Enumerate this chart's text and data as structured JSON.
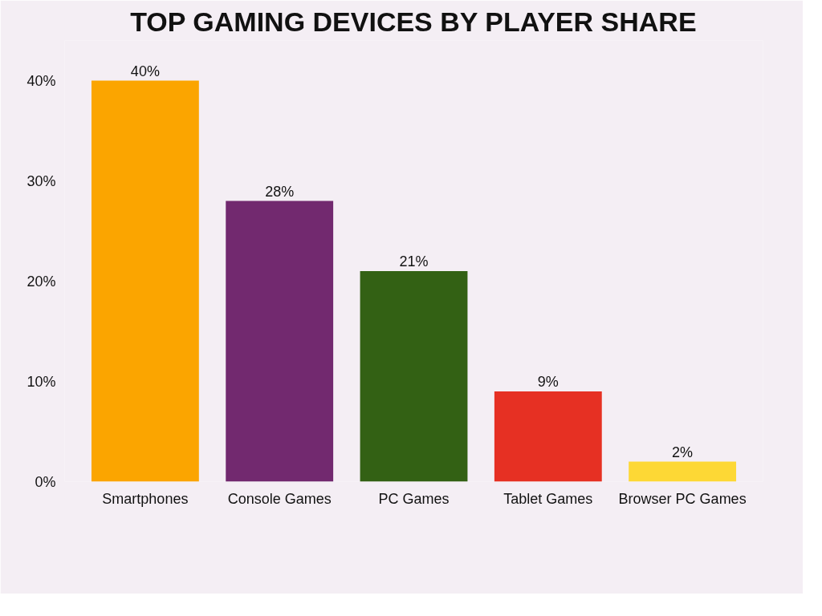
{
  "chart_data": {
    "type": "bar",
    "title": "TOP GAMING DEVICES BY PLAYER SHARE",
    "categories": [
      "Smartphones",
      "Console Games",
      "PC Games",
      "Tablet Games",
      "Browser PC Games"
    ],
    "values": [
      40,
      28,
      21,
      9,
      2
    ],
    "colors": [
      "#fba500",
      "#72296f",
      "#336114",
      "#e63023",
      "#fdd835"
    ],
    "value_labels": [
      "40%",
      "28%",
      "21%",
      "9%",
      "2%"
    ],
    "ylim": [
      0,
      44
    ],
    "yticks": [
      {
        "value": 0,
        "label": "0%"
      },
      {
        "value": 10,
        "label": "10%"
      },
      {
        "value": 20,
        "label": "20%"
      },
      {
        "value": 30,
        "label": "30%"
      },
      {
        "value": 40,
        "label": "40%"
      }
    ],
    "grid": false
  }
}
